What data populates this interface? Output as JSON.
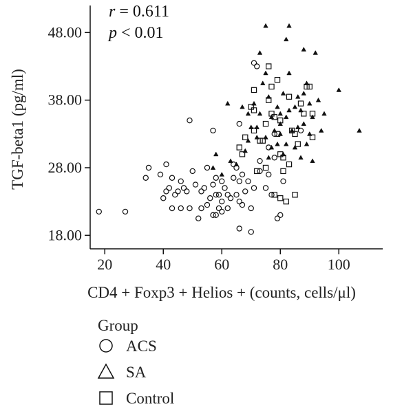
{
  "chart_data": {
    "type": "scatter",
    "xlabel": "CD4 + Foxp3 + Helios + (counts, cells/μl)",
    "ylabel": "TGF-beta1 (pg/ml)",
    "xlim": [
      15,
      115
    ],
    "ylim": [
      16,
      52
    ],
    "x_ticks": [
      20,
      40,
      60,
      80,
      100
    ],
    "y_ticks": [
      18.0,
      28.0,
      38.0,
      48.0
    ],
    "x_tick_labels": [
      "20",
      "40",
      "60",
      "80",
      "100"
    ],
    "y_tick_labels": [
      "18.00",
      "28.00",
      "38.00",
      "48.00"
    ],
    "annotation": {
      "r_symbol": "r",
      "r_text": " = 0.611",
      "p_symbol": "p",
      "p_text": " < 0.01"
    },
    "legend": {
      "title": "Group",
      "placement": "bottom-left"
    },
    "series": [
      {
        "name": "ACS",
        "marker": "circle",
        "points": [
          [
            18,
            21.5
          ],
          [
            27,
            21.5
          ],
          [
            34,
            26.5
          ],
          [
            35,
            28.0
          ],
          [
            39,
            27.0
          ],
          [
            40,
            23.5
          ],
          [
            41,
            24.5
          ],
          [
            41,
            28.5
          ],
          [
            42,
            25.0
          ],
          [
            43,
            22.0
          ],
          [
            43,
            26.5
          ],
          [
            44,
            24.0
          ],
          [
            45,
            24.5
          ],
          [
            46,
            26.0
          ],
          [
            46,
            22.0
          ],
          [
            47,
            25.0
          ],
          [
            48,
            24.5
          ],
          [
            49,
            22.0
          ],
          [
            50,
            27.5
          ],
          [
            51,
            25.5
          ],
          [
            52,
            20.5
          ],
          [
            53,
            22.0
          ],
          [
            53,
            24.5
          ],
          [
            54,
            25.0
          ],
          [
            55,
            28.0
          ],
          [
            55,
            22.5
          ],
          [
            56,
            23.5
          ],
          [
            57,
            25.5
          ],
          [
            57,
            21.0
          ],
          [
            58,
            26.5
          ],
          [
            58,
            24.0
          ],
          [
            58,
            21.0
          ],
          [
            59,
            22.0
          ],
          [
            59,
            24.0
          ],
          [
            60,
            21.5
          ],
          [
            60,
            23.0
          ],
          [
            60,
            26.0
          ],
          [
            61,
            25.0
          ],
          [
            62,
            22.0
          ],
          [
            62,
            24.0
          ],
          [
            63,
            23.5
          ],
          [
            64,
            26.5
          ],
          [
            64,
            28.5
          ],
          [
            65,
            24.0
          ],
          [
            65,
            28.0
          ],
          [
            66,
            23.0
          ],
          [
            66,
            26.0
          ],
          [
            66,
            19.0
          ],
          [
            67,
            27.0
          ],
          [
            67,
            22.5
          ],
          [
            68,
            24.5
          ],
          [
            69,
            26.0
          ],
          [
            70,
            22.0
          ],
          [
            70,
            18.5
          ],
          [
            71,
            25.0
          ],
          [
            73,
            27.5
          ],
          [
            75,
            25.0
          ],
          [
            76,
            31.0
          ],
          [
            77,
            24.0
          ],
          [
            78,
            33.0
          ],
          [
            79,
            20.5
          ],
          [
            80,
            21.0
          ],
          [
            81,
            26.0
          ],
          [
            57,
            33.5
          ],
          [
            66,
            34.5
          ],
          [
            49,
            35.0
          ],
          [
            71,
            43.5
          ],
          [
            72,
            43.0
          ],
          [
            73,
            29.0
          ],
          [
            76,
            27.0
          ],
          [
            78,
            29.5
          ],
          [
            87,
            33.5
          ]
        ]
      },
      {
        "name": "SA",
        "marker": "triangle",
        "points": [
          [
            60,
            27.0
          ],
          [
            63,
            29.0
          ],
          [
            65,
            28.5
          ],
          [
            68,
            30.5
          ],
          [
            69,
            36.0
          ],
          [
            70,
            34.0
          ],
          [
            71,
            37.5
          ],
          [
            72,
            32.5
          ],
          [
            72,
            34.0
          ],
          [
            73,
            36.0
          ],
          [
            73,
            45.0
          ],
          [
            74,
            40.5
          ],
          [
            75,
            32.5
          ],
          [
            75,
            42.0
          ],
          [
            75,
            49.0
          ],
          [
            76,
            29.5
          ],
          [
            76,
            38.5
          ],
          [
            77,
            35.5
          ],
          [
            78,
            33.5
          ],
          [
            79,
            31.5
          ],
          [
            79,
            37.0
          ],
          [
            80,
            34.5
          ],
          [
            80,
            36.0
          ],
          [
            81,
            30.0
          ],
          [
            81,
            39.0
          ],
          [
            82,
            31.5
          ],
          [
            82,
            35.5
          ],
          [
            82,
            47.0
          ],
          [
            83,
            36.5
          ],
          [
            83,
            49.0
          ],
          [
            84,
            33.5
          ],
          [
            85,
            31.0
          ],
          [
            85,
            37.0
          ],
          [
            86,
            34.0
          ],
          [
            86,
            38.5
          ],
          [
            87,
            29.5
          ],
          [
            87,
            36.5
          ],
          [
            88,
            34.5
          ],
          [
            88,
            39.0
          ],
          [
            88,
            45.5
          ],
          [
            89,
            31.5
          ],
          [
            89,
            40.5
          ],
          [
            90,
            33.0
          ],
          [
            90,
            37.5
          ],
          [
            91,
            29.0
          ],
          [
            91,
            35.5
          ],
          [
            92,
            45.0
          ],
          [
            93,
            38.0
          ],
          [
            94,
            33.5
          ],
          [
            95,
            36.0
          ],
          [
            100,
            39.5
          ],
          [
            107,
            33.5
          ],
          [
            62,
            37.5
          ],
          [
            58,
            30.0
          ],
          [
            57,
            28.0
          ],
          [
            69,
            32.0
          ],
          [
            77,
            31.0
          ],
          [
            80,
            33.0
          ],
          [
            83,
            42.0
          ],
          [
            67,
            37.0
          ]
        ]
      },
      {
        "name": "Control",
        "marker": "square",
        "points": [
          [
            66,
            31.0
          ],
          [
            67,
            30.0
          ],
          [
            68,
            32.5
          ],
          [
            70,
            37.0
          ],
          [
            71,
            36.5
          ],
          [
            71,
            39.5
          ],
          [
            71,
            33.5
          ],
          [
            72,
            27.5
          ],
          [
            73,
            32.0
          ],
          [
            74,
            32.0
          ],
          [
            75,
            28.0
          ],
          [
            75,
            34.5
          ],
          [
            76,
            38.0
          ],
          [
            76,
            43.0
          ],
          [
            77,
            36.0
          ],
          [
            77,
            40.0
          ],
          [
            78,
            35.5
          ],
          [
            78,
            24.0
          ],
          [
            79,
            33.0
          ],
          [
            79,
            41.0
          ],
          [
            80,
            23.5
          ],
          [
            80,
            30.0
          ],
          [
            80,
            35.0
          ],
          [
            81,
            27.5
          ],
          [
            81,
            29.5
          ],
          [
            82,
            23.0
          ],
          [
            83,
            28.5
          ],
          [
            83,
            38.5
          ],
          [
            84,
            33.5
          ],
          [
            85,
            33.0
          ],
          [
            85,
            24.0
          ],
          [
            86,
            31.5
          ],
          [
            87,
            37.5
          ],
          [
            88,
            36.0
          ],
          [
            89,
            40.0
          ],
          [
            90,
            40.0
          ],
          [
            91,
            32.5
          ],
          [
            91,
            36.0
          ]
        ]
      }
    ]
  }
}
